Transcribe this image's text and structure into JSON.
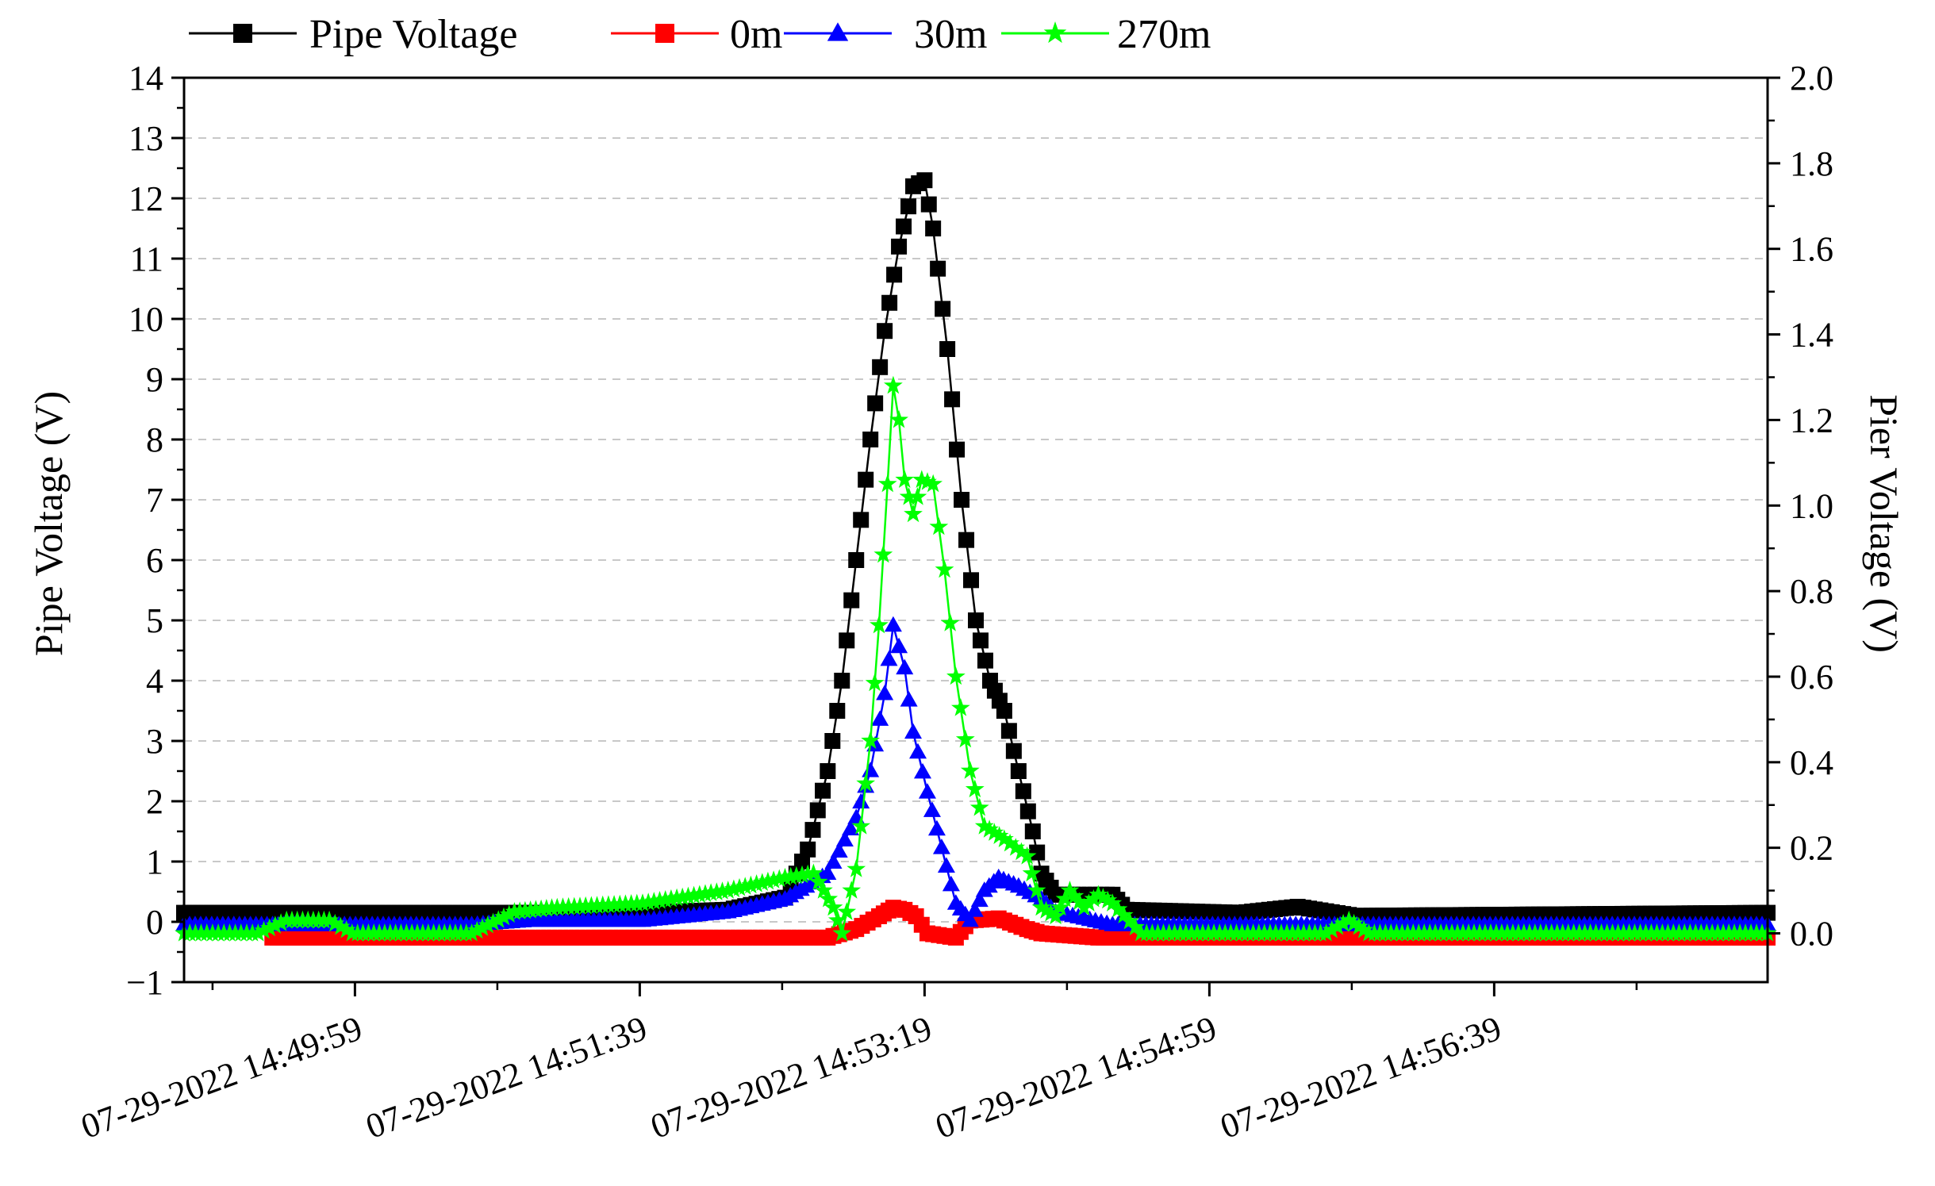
{
  "chart_data": {
    "type": "line",
    "x_unit": "time",
    "x_range": [
      "07-29-2022 14:48:59",
      "07-29-2022 14:58:15"
    ],
    "x_ticks": [
      {
        "time": "07-29-2022 14:49:59",
        "label": "07-29-2022 14:49:59"
      },
      {
        "time": "07-29-2022 14:51:39",
        "label": "07-29-2022 14:51:39"
      },
      {
        "time": "07-29-2022 14:53:19",
        "label": "07-29-2022 14:53:19"
      },
      {
        "time": "07-29-2022 14:54:59",
        "label": "07-29-2022 14:54:59"
      },
      {
        "time": "07-29-2022 14:56:39",
        "label": "07-29-2022 14:56:39"
      }
    ],
    "y_left": {
      "label": "Pipe Voltage (V)",
      "ylim": [
        -1,
        14
      ],
      "ticks": [
        -1,
        0,
        1,
        2,
        3,
        4,
        5,
        6,
        7,
        8,
        9,
        10,
        11,
        12,
        13,
        14
      ],
      "tick_labels": [
        "−1",
        "0",
        "1",
        "2",
        "3",
        "4",
        "5",
        "6",
        "7",
        "8",
        "9",
        "10",
        "11",
        "12",
        "13",
        "14"
      ]
    },
    "y_right": {
      "label": "Pier Voltage (V)",
      "ylim": [
        -0.114,
        2.0
      ],
      "ticks": [
        0.0,
        0.2,
        0.4,
        0.6,
        0.8,
        1.0,
        1.2,
        1.4,
        1.6,
        1.8,
        2.0
      ],
      "tick_labels": [
        "0.0",
        "0.2",
        "0.4",
        "0.6",
        "0.8",
        "1.0",
        "1.2",
        "1.4",
        "1.6",
        "1.8",
        "2.0"
      ]
    },
    "grid": "horizontal dashed",
    "legend_position": "top",
    "series": [
      {
        "name": "Pipe Voltage",
        "axis": "left",
        "color": "#000000",
        "marker": "square",
        "points": [
          [
            "07-29-2022 14:48:59",
            0.15
          ],
          [
            "07-29-2022 14:49:59",
            0.15
          ],
          [
            "07-29-2022 14:51:39",
            0.15
          ],
          [
            "07-29-2022 14:52:10",
            0.2
          ],
          [
            "07-29-2022 14:52:30",
            0.4
          ],
          [
            "07-29-2022 14:52:38",
            1.2
          ],
          [
            "07-29-2022 14:52:45",
            2.5
          ],
          [
            "07-29-2022 14:52:50",
            4.0
          ],
          [
            "07-29-2022 14:52:55",
            6.0
          ],
          [
            "07-29-2022 14:53:00",
            8.0
          ],
          [
            "07-29-2022 14:53:05",
            9.8
          ],
          [
            "07-29-2022 14:53:10",
            11.2
          ],
          [
            "07-29-2022 14:53:15",
            12.2
          ],
          [
            "07-29-2022 14:53:19",
            12.3
          ],
          [
            "07-29-2022 14:53:22",
            11.5
          ],
          [
            "07-29-2022 14:53:27",
            9.5
          ],
          [
            "07-29-2022 14:53:32",
            7.0
          ],
          [
            "07-29-2022 14:53:37",
            5.0
          ],
          [
            "07-29-2022 14:53:42",
            4.0
          ],
          [
            "07-29-2022 14:53:47",
            3.5
          ],
          [
            "07-29-2022 14:53:52",
            2.5
          ],
          [
            "07-29-2022 14:53:57",
            1.5
          ],
          [
            "07-29-2022 14:54:00",
            0.8
          ],
          [
            "07-29-2022 14:54:05",
            0.45
          ],
          [
            "07-29-2022 14:54:25",
            0.45
          ],
          [
            "07-29-2022 14:54:30",
            0.2
          ],
          [
            "07-29-2022 14:55:10",
            0.15
          ],
          [
            "07-29-2022 14:55:30",
            0.25
          ],
          [
            "07-29-2022 14:55:50",
            0.1
          ],
          [
            "07-29-2022 14:58:15",
            0.15
          ]
        ]
      },
      {
        "name": "0m",
        "axis": "right",
        "color": "#ff0000",
        "marker": "square",
        "points": [
          [
            "07-29-2022 14:49:30",
            -0.01
          ],
          [
            "07-29-2022 14:49:45",
            -0.01
          ],
          [
            "07-29-2022 14:50:30",
            -0.01
          ],
          [
            "07-29-2022 14:52:45",
            -0.01
          ],
          [
            "07-29-2022 14:52:55",
            0.01
          ],
          [
            "07-29-2022 14:53:03",
            0.04
          ],
          [
            "07-29-2022 14:53:08",
            0.06
          ],
          [
            "07-29-2022 14:53:12",
            0.055
          ],
          [
            "07-29-2022 14:53:16",
            0.04
          ],
          [
            "07-29-2022 14:53:20",
            0.0
          ],
          [
            "07-29-2022 14:53:30",
            -0.01
          ],
          [
            "07-29-2022 14:53:35",
            0.03
          ],
          [
            "07-29-2022 14:53:45",
            0.035
          ],
          [
            "07-29-2022 14:53:55",
            0.01
          ],
          [
            "07-29-2022 14:54:00",
            0.0
          ],
          [
            "07-29-2022 14:54:20",
            -0.01
          ],
          [
            "07-29-2022 14:58:15",
            -0.01
          ]
        ]
      },
      {
        "name": "30m",
        "axis": "right",
        "color": "#0000ff",
        "marker": "triangle",
        "points": [
          [
            "07-29-2022 14:48:59",
            0.02
          ],
          [
            "07-29-2022 14:50:40",
            0.02
          ],
          [
            "07-29-2022 14:51:00",
            0.03
          ],
          [
            "07-29-2022 14:51:40",
            0.03
          ],
          [
            "07-29-2022 14:52:10",
            0.05
          ],
          [
            "07-29-2022 14:52:30",
            0.08
          ],
          [
            "07-29-2022 14:52:45",
            0.14
          ],
          [
            "07-29-2022 14:52:55",
            0.27
          ],
          [
            "07-29-2022 14:53:00",
            0.38
          ],
          [
            "07-29-2022 14:53:05",
            0.56
          ],
          [
            "07-29-2022 14:53:08",
            0.72
          ],
          [
            "07-29-2022 14:53:12",
            0.62
          ],
          [
            "07-29-2022 14:53:15",
            0.47
          ],
          [
            "07-29-2022 14:53:20",
            0.33
          ],
          [
            "07-29-2022 14:53:25",
            0.2
          ],
          [
            "07-29-2022 14:53:30",
            0.07
          ],
          [
            "07-29-2022 14:53:35",
            0.03
          ],
          [
            "07-29-2022 14:53:40",
            0.1
          ],
          [
            "07-29-2022 14:53:45",
            0.13
          ],
          [
            "07-29-2022 14:53:52",
            0.11
          ],
          [
            "07-29-2022 14:54:00",
            0.08
          ],
          [
            "07-29-2022 14:54:05",
            0.05
          ],
          [
            "07-29-2022 14:54:25",
            0.02
          ],
          [
            "07-29-2022 14:58:15",
            0.02
          ]
        ]
      },
      {
        "name": "270m",
        "axis": "right",
        "color": "#00ff00",
        "marker": "star",
        "points": [
          [
            "07-29-2022 14:48:59",
            0.0
          ],
          [
            "07-29-2022 14:49:25",
            0.0
          ],
          [
            "07-29-2022 14:49:35",
            0.03
          ],
          [
            "07-29-2022 14:49:50",
            0.03
          ],
          [
            "07-29-2022 14:49:58",
            0.0
          ],
          [
            "07-29-2022 14:50:40",
            0.0
          ],
          [
            "07-29-2022 14:50:55",
            0.05
          ],
          [
            "07-29-2022 14:51:10",
            0.06
          ],
          [
            "07-29-2022 14:51:40",
            0.07
          ],
          [
            "07-29-2022 14:52:10",
            0.1
          ],
          [
            "07-29-2022 14:52:30",
            0.13
          ],
          [
            "07-29-2022 14:52:40",
            0.14
          ],
          [
            "07-29-2022 14:52:47",
            0.06
          ],
          [
            "07-29-2022 14:52:50",
            0.0
          ],
          [
            "07-29-2022 14:52:55",
            0.15
          ],
          [
            "07-29-2022 14:53:00",
            0.45
          ],
          [
            "07-29-2022 14:53:03",
            0.72
          ],
          [
            "07-29-2022 14:53:06",
            1.05
          ],
          [
            "07-29-2022 14:53:08",
            1.28
          ],
          [
            "07-29-2022 14:53:10",
            1.2
          ],
          [
            "07-29-2022 14:53:12",
            1.06
          ],
          [
            "07-29-2022 14:53:15",
            0.98
          ],
          [
            "07-29-2022 14:53:18",
            1.06
          ],
          [
            "07-29-2022 14:53:22",
            1.05
          ],
          [
            "07-29-2022 14:53:26",
            0.85
          ],
          [
            "07-29-2022 14:53:30",
            0.6
          ],
          [
            "07-29-2022 14:53:35",
            0.38
          ],
          [
            "07-29-2022 14:53:40",
            0.25
          ],
          [
            "07-29-2022 14:53:47",
            0.22
          ],
          [
            "07-29-2022 14:53:55",
            0.18
          ],
          [
            "07-29-2022 14:54:00",
            0.06
          ],
          [
            "07-29-2022 14:54:05",
            0.04
          ],
          [
            "07-29-2022 14:54:10",
            0.1
          ],
          [
            "07-29-2022 14:54:15",
            0.06
          ],
          [
            "07-29-2022 14:54:20",
            0.09
          ],
          [
            "07-29-2022 14:54:25",
            0.07
          ],
          [
            "07-29-2022 14:54:35",
            0.0
          ],
          [
            "07-29-2022 14:55:40",
            0.0
          ],
          [
            "07-29-2022 14:55:48",
            0.03
          ],
          [
            "07-29-2022 14:55:55",
            0.0
          ],
          [
            "07-29-2022 14:58:15",
            0.0
          ]
        ]
      }
    ]
  }
}
